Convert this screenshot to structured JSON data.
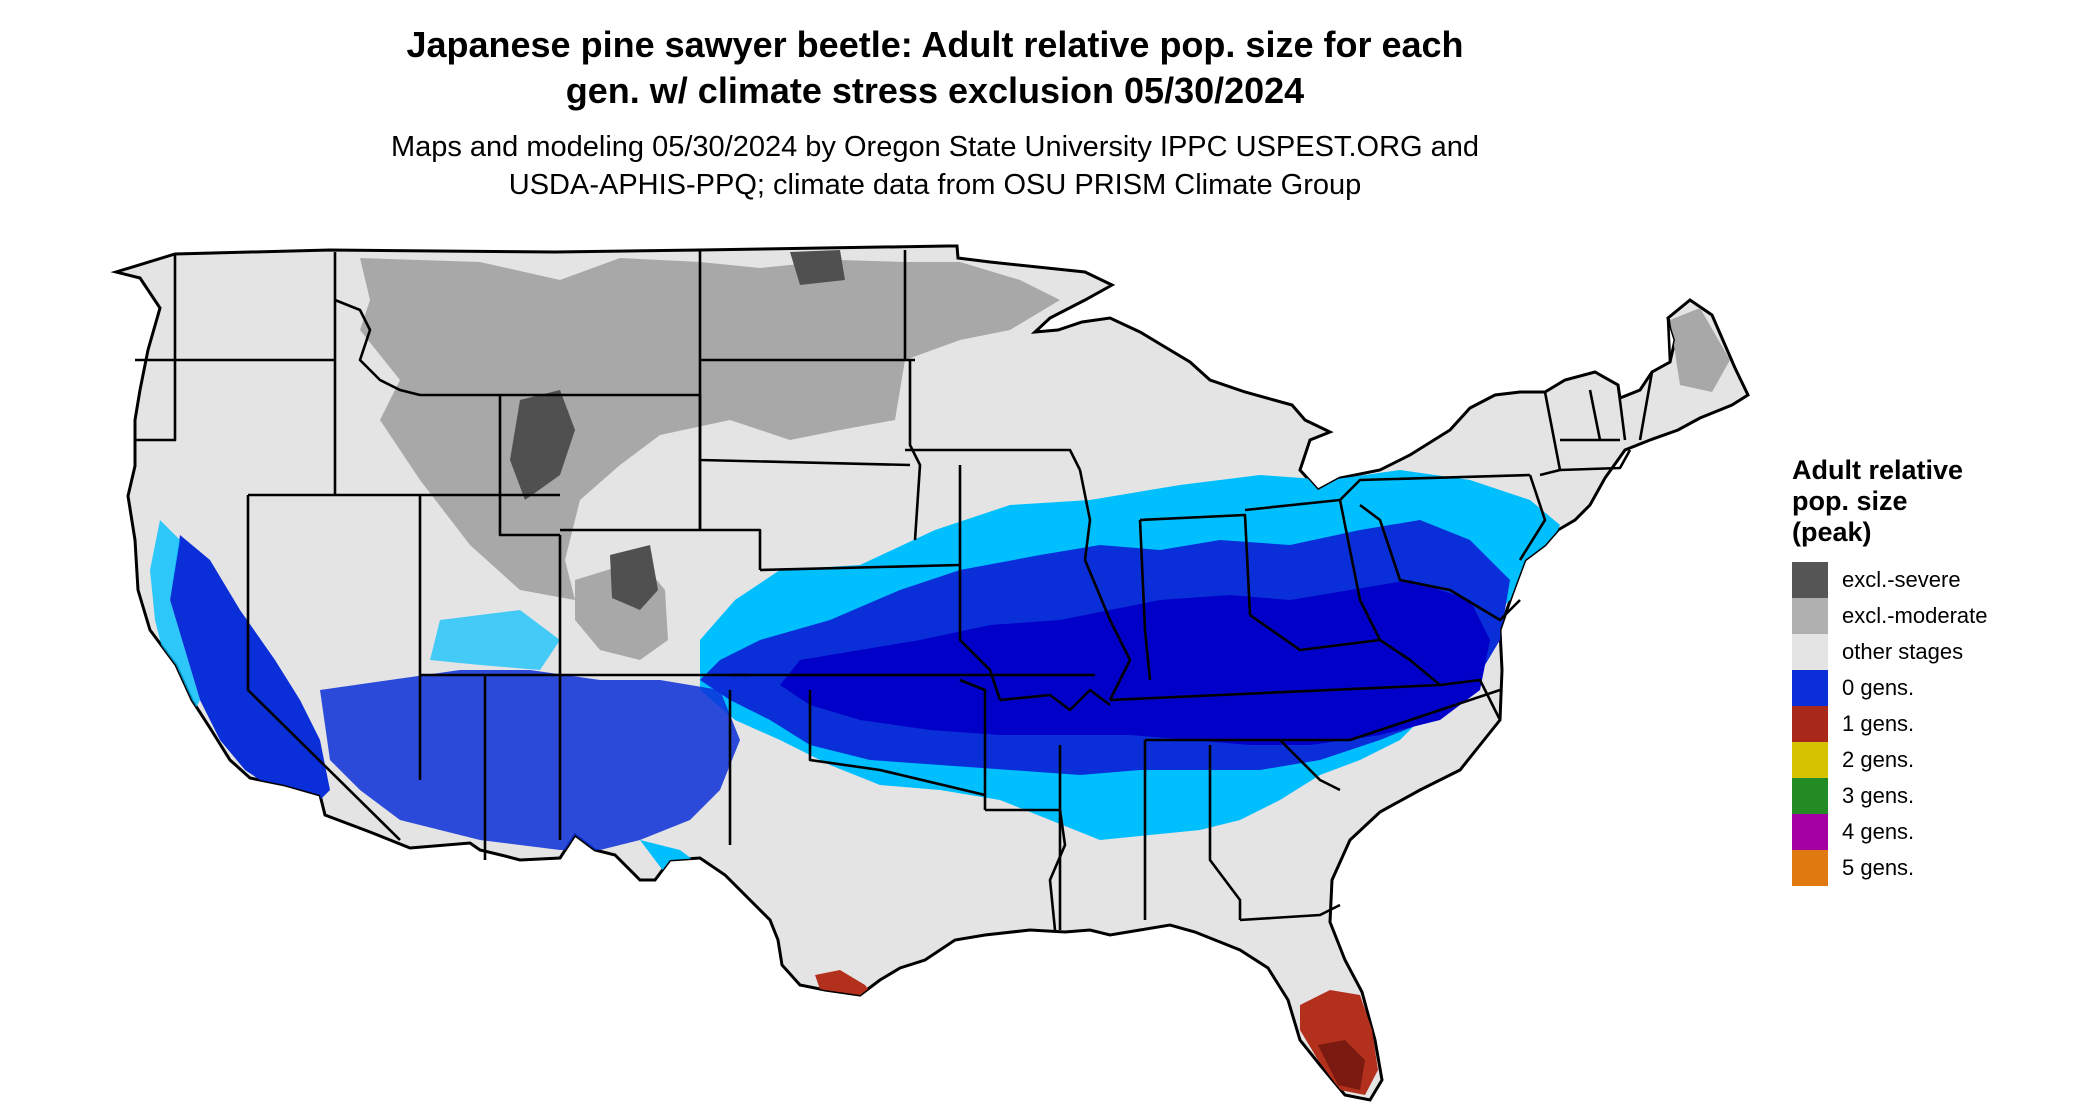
{
  "title": {
    "line1": "Japanese pine sawyer beetle: Adult relative pop. size for each",
    "line2": "gen. w/ climate stress exclusion 05/30/2024"
  },
  "subtitle": {
    "line1": "Maps and modeling 05/30/2024 by Oregon State University IPPC USPEST.ORG and",
    "line2": "USDA-APHIS-PPQ; climate data from OSU PRISM Climate Group"
  },
  "legend": {
    "title_line1": "Adult relative",
    "title_line2": "pop. size",
    "title_line3": "(peak)",
    "items": [
      {
        "label": "excl.-severe",
        "color": "#555555"
      },
      {
        "label": "excl.-moderate",
        "color": "#b0b0b0"
      },
      {
        "label": "other stages",
        "color": "#e4e4e4"
      },
      {
        "label": "0 gens.",
        "color": "#0a2fd8"
      },
      {
        "label": "1 gens.",
        "color": "#a8291a"
      },
      {
        "label": "2 gens.",
        "color": "#d6c300"
      },
      {
        "label": "3 gens.",
        "color": "#238b23"
      },
      {
        "label": "4 gens.",
        "color": "#a400a4"
      },
      {
        "label": "5 gens.",
        "color": "#e07a10"
      }
    ]
  },
  "map_colors": {
    "land": "#e4e4e4",
    "excl_moderate": "#a8a8a8",
    "excl_severe": "#505050",
    "light_blue": "#00bfff",
    "medium_blue": "#0a2fd8",
    "dark_blue": "#0000c8",
    "one_gen": "#b3301c",
    "one_gen_dark": "#7a1a10",
    "border": "#000000"
  }
}
